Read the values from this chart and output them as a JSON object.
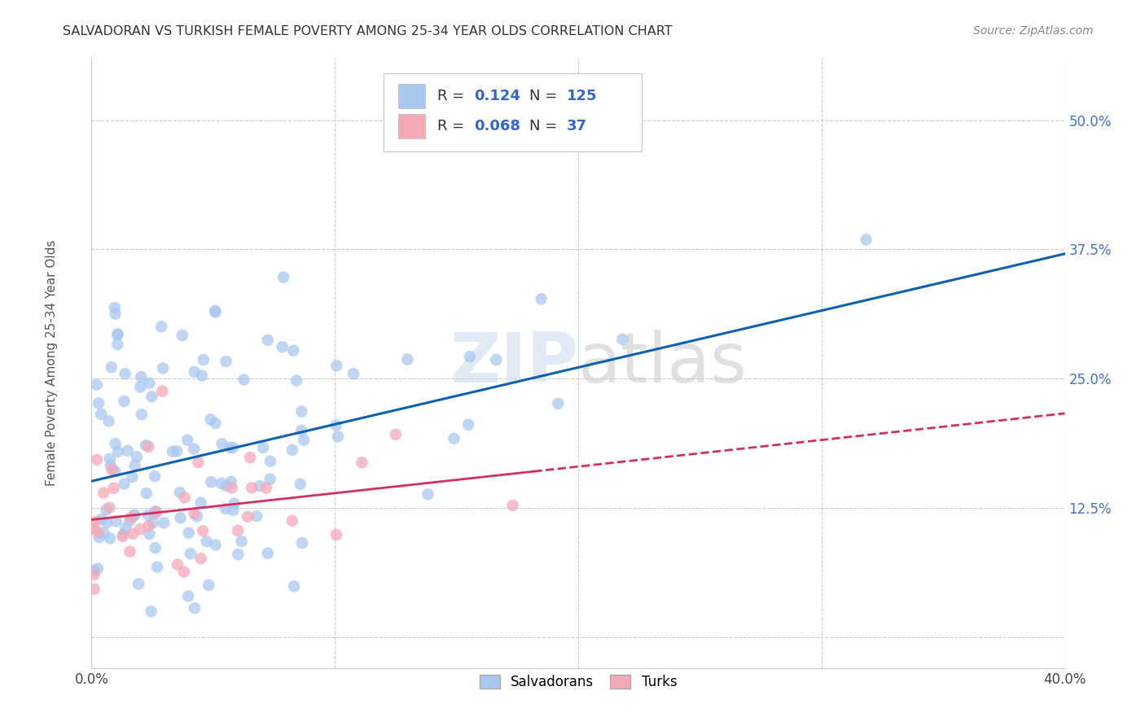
{
  "title": "SALVADORAN VS TURKISH FEMALE POVERTY AMONG 25-34 YEAR OLDS CORRELATION CHART",
  "source": "Source: ZipAtlas.com",
  "ylabel": "Female Poverty Among 25-34 Year Olds",
  "xlim": [
    0.0,
    0.4
  ],
  "ylim": [
    -0.03,
    0.56
  ],
  "yticks": [
    0.0,
    0.125,
    0.25,
    0.375,
    0.5
  ],
  "yticklabels": [
    "",
    "12.5%",
    "25.0%",
    "37.5%",
    "50.0%"
  ],
  "xticks": [
    0.0,
    0.1,
    0.2,
    0.3,
    0.4
  ],
  "xticklabels": [
    "0.0%",
    "",
    "",
    "",
    "40.0%"
  ],
  "blue_color": "#A8C8F0",
  "pink_color": "#F5A8B8",
  "blue_line_color": "#1060B0",
  "pink_line_color": "#D03060",
  "blue_R": 0.124,
  "blue_N": 125,
  "pink_R": 0.068,
  "pink_N": 37,
  "watermark_zip": "ZIP",
  "watermark_atlas": "atlas",
  "background_color": "#ffffff",
  "grid_color": "#cccccc"
}
